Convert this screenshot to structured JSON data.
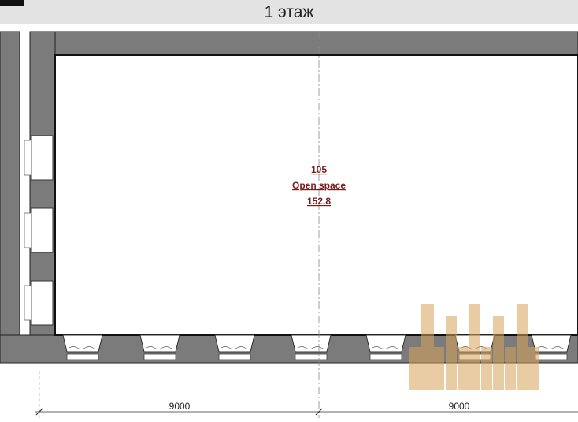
{
  "header": {
    "title": "1 этаж"
  },
  "room": {
    "number": "105",
    "name": "Open space",
    "area": "152.8"
  },
  "dimensions": [
    "9000",
    "9000"
  ]
}
